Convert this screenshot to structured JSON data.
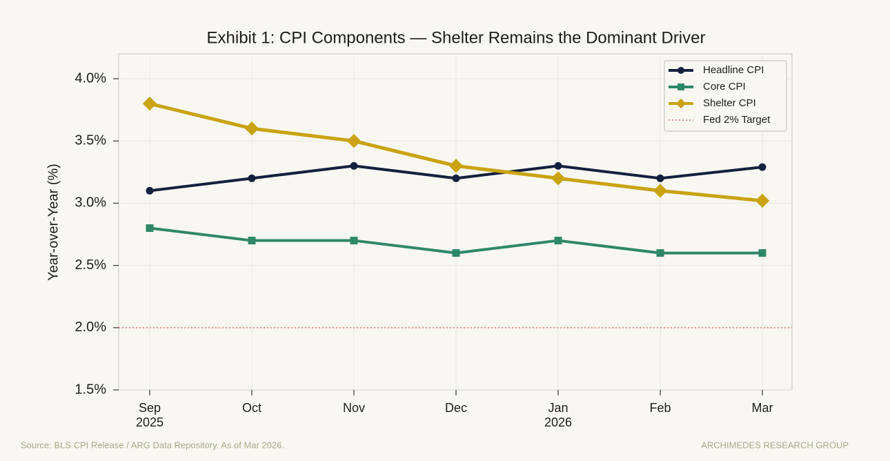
{
  "chart_data": {
    "type": "line",
    "title": "Exhibit 1: CPI Components — Shelter Remains the Dominant Driver",
    "y_label": "Year-over-Year (%)",
    "categories": [
      "Sep 2025",
      "Oct",
      "Nov",
      "Dec",
      "Jan 2026",
      "Feb",
      "Mar"
    ],
    "series": [
      {
        "name": "Headline CPI",
        "color": "#13203d",
        "marker": "circle",
        "values": [
          3.1,
          3.2,
          3.3,
          3.2,
          3.3,
          3.2,
          3.29
        ]
      },
      {
        "name": "Core CPI",
        "color": "#2e8768",
        "marker": "square",
        "values": [
          2.8,
          2.7,
          2.7,
          2.6,
          2.7,
          2.6,
          2.6
        ]
      },
      {
        "name": "Shelter CPI",
        "color": "#c9a312",
        "marker": "diamond",
        "values": [
          3.8,
          3.6,
          3.5,
          3.3,
          3.2,
          3.1,
          3.02
        ]
      }
    ],
    "reference_lines": [
      {
        "name": "Fed 2% Target",
        "value": 2,
        "color": "#e8908a"
      }
    ],
    "ylim": [
      1.5,
      4.2
    ],
    "yticks": [
      {
        "value": 1.5,
        "label": "1.5%"
      },
      {
        "value": 2.0,
        "label": "2.0%"
      },
      {
        "value": 2.5,
        "label": "2.5%"
      },
      {
        "value": 3.0,
        "label": "3.0%"
      },
      {
        "value": 3.5,
        "label": "3.5%"
      },
      {
        "value": 4.0,
        "label": "4.0%"
      }
    ],
    "grid": true,
    "legend": "upper right",
    "source": "Source: BLS CPI Release / ARG Data Repository. As of Mar 2026.",
    "brand": "ARCHIMEDES RESEARCH GROUP"
  }
}
